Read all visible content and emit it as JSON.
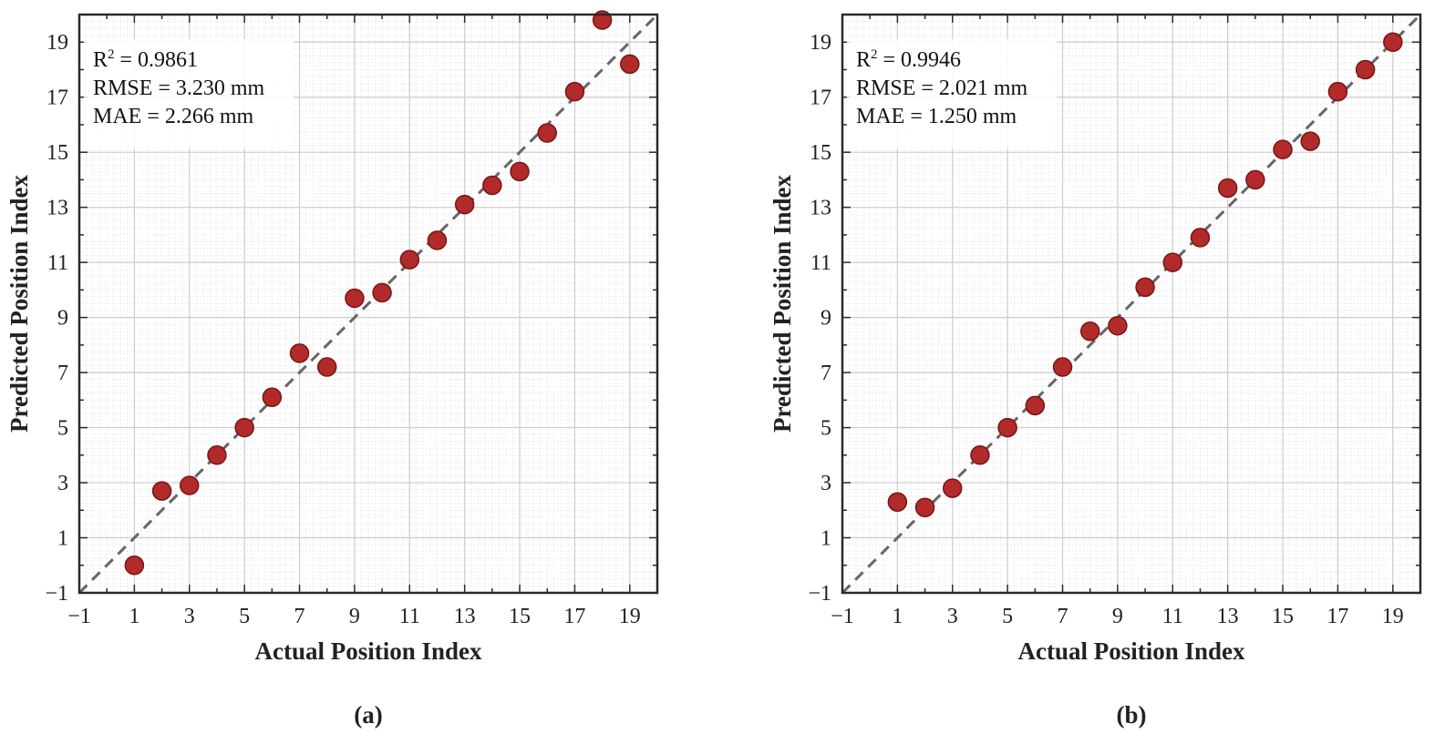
{
  "figure": {
    "panels": [
      {
        "caption": "(a)",
        "stats": {
          "r2_label": "R",
          "r2_sup": "2",
          "r2_value": " = 0.9861",
          "rmse": "RMSE = 3.230 mm",
          "mae": "MAE = 2.266 mm"
        }
      },
      {
        "caption": "(b)",
        "stats": {
          "r2_label": "R",
          "r2_sup": "2",
          "r2_value": " = 0.9946",
          "rmse": "RMSE = 2.021 mm",
          "mae": "MAE = 1.250 mm"
        }
      }
    ]
  },
  "colors": {
    "marker_fill": "#b22a2a",
    "marker_edge": "#7a1515",
    "identity_line": "#666666",
    "axes": "#2a2a2a",
    "grid_major": "#cccccc",
    "grid_minor": "#e6e6e6"
  },
  "chart_data": [
    {
      "type": "scatter",
      "title": "",
      "xlabel": "Actual Position Index",
      "ylabel": "Predicted Position Index",
      "xlim": [
        -1,
        20
      ],
      "ylim": [
        -1,
        20
      ],
      "xticks": [
        -1,
        1,
        3,
        5,
        7,
        9,
        11,
        13,
        15,
        17,
        19
      ],
      "yticks": [
        -1,
        1,
        3,
        5,
        7,
        9,
        11,
        13,
        15,
        17,
        19
      ],
      "tick_labels": [
        "−1",
        "1",
        "3",
        "5",
        "7",
        "9",
        "11",
        "13",
        "15",
        "17",
        "19"
      ],
      "grid": true,
      "identity_line": [
        [
          -1,
          -1
        ],
        [
          20,
          20
        ]
      ],
      "x": [
        1,
        2,
        3,
        4,
        5,
        6,
        7,
        8,
        9,
        10,
        11,
        12,
        13,
        14,
        15,
        16,
        17,
        18,
        19
      ],
      "y": [
        0.0,
        2.7,
        2.9,
        4.0,
        5.0,
        6.1,
        7.7,
        7.2,
        9.7,
        9.9,
        11.1,
        11.8,
        13.1,
        13.8,
        14.3,
        15.7,
        17.2,
        19.8,
        18.2
      ]
    },
    {
      "type": "scatter",
      "title": "",
      "xlabel": "Actual Position Index",
      "ylabel": "Predicted Position Index",
      "xlim": [
        -1,
        20
      ],
      "ylim": [
        -1,
        20
      ],
      "xticks": [
        -1,
        1,
        3,
        5,
        7,
        9,
        11,
        13,
        15,
        17,
        19
      ],
      "yticks": [
        -1,
        1,
        3,
        5,
        7,
        9,
        11,
        13,
        15,
        17,
        19
      ],
      "tick_labels": [
        "−1",
        "1",
        "3",
        "5",
        "7",
        "9",
        "11",
        "13",
        "15",
        "17",
        "19"
      ],
      "grid": true,
      "identity_line": [
        [
          -1,
          -1
        ],
        [
          20,
          20
        ]
      ],
      "x": [
        1,
        2,
        3,
        4,
        5,
        6,
        7,
        8,
        9,
        10,
        11,
        12,
        13,
        14,
        15,
        16,
        17,
        18,
        19
      ],
      "y": [
        2.3,
        2.1,
        2.8,
        4.0,
        5.0,
        5.8,
        7.2,
        8.5,
        8.7,
        10.1,
        11.0,
        11.9,
        13.7,
        14.0,
        15.1,
        15.4,
        17.2,
        18.0,
        19.0
      ]
    }
  ]
}
